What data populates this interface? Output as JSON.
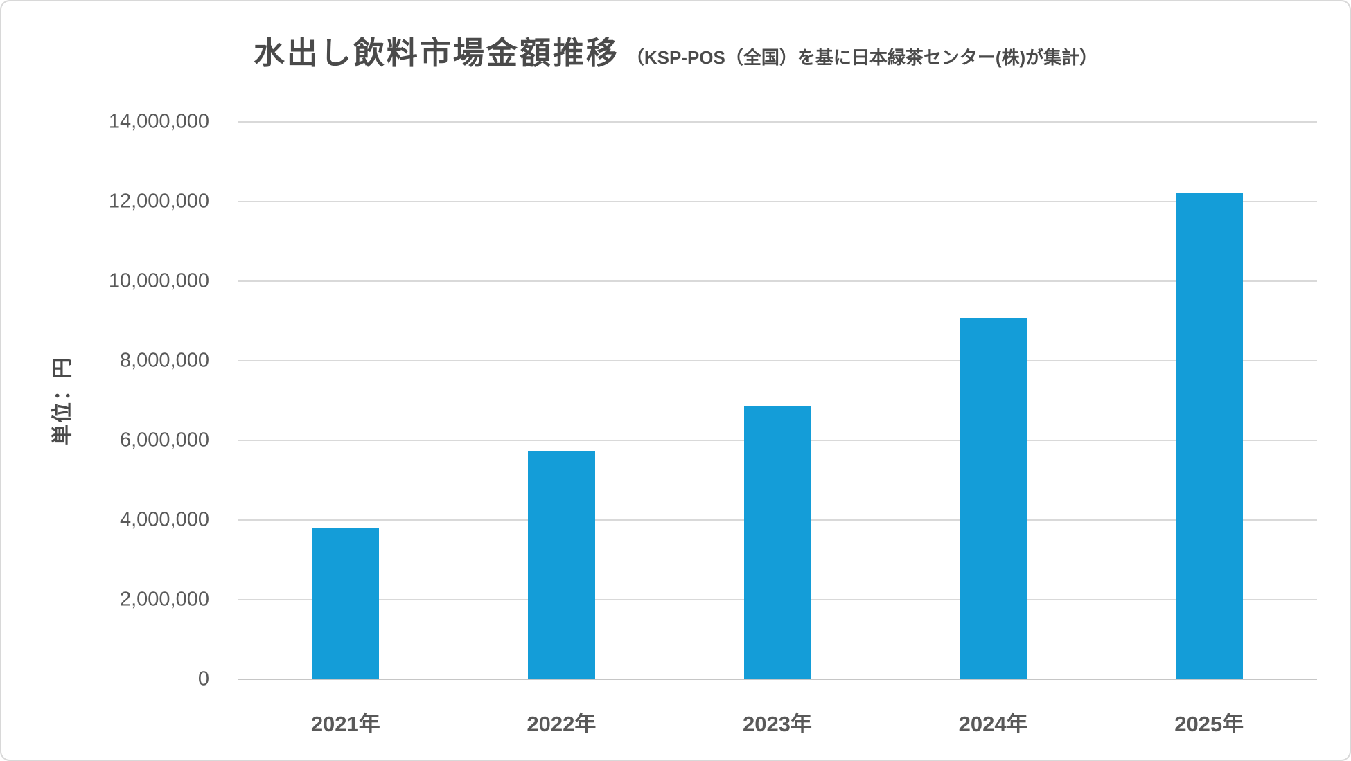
{
  "title": {
    "main": "水出し飲料市場金額推移",
    "sub": "（KSP-POS（全国）を基に日本緑茶センター(株)が集計）"
  },
  "chart_data": {
    "type": "bar",
    "title": "水出し飲料市場金額推移（KSP-POS（全国）を基に日本緑茶センター(株)が集計）",
    "categories": [
      "2021年",
      "2022年",
      "2023年",
      "2024年",
      "2025年"
    ],
    "values": [
      3800000,
      5720000,
      6870000,
      9080000,
      12220000
    ],
    "xlabel": "",
    "ylabel": "単位：円",
    "ylim": [
      0,
      14000000
    ],
    "ytick_step": 2000000,
    "ytick_labels": [
      "0",
      "2,000,000",
      "4,000,000",
      "6,000,000",
      "8,000,000",
      "10,000,000",
      "12,000,000",
      "14,000,000"
    ],
    "grid": true,
    "legend": false
  },
  "colors": {
    "bar": "#149dd8",
    "grid": "#d9d9d9",
    "baseline": "#c6c6c6",
    "axis_text": "#595959",
    "title_text": "#4a4a4a",
    "frame_border": "#d8d8d8"
  }
}
